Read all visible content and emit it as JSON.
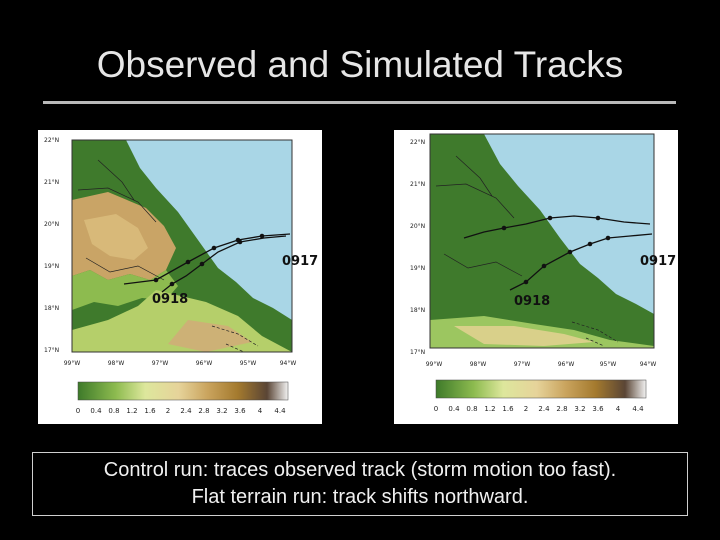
{
  "slide": {
    "title": "Observed and Simulated Tracks",
    "caption_line1": "Control run: traces observed track (storm motion too fast).",
    "caption_line2": "Flat terrain run: track shifts northward."
  },
  "maps": [
    {
      "name": "control-run",
      "lat_labels": [
        "22°N",
        "21°N",
        "20°N",
        "19°N",
        "18°N",
        "17°N"
      ],
      "lon_labels": [
        "99°W",
        "98°W",
        "97°W",
        "96°W",
        "95°W",
        "94°W"
      ],
      "track_labels": [
        "0917",
        "0918"
      ],
      "colorbar_labels": [
        "0",
        "0.4",
        "0.8",
        "1.2",
        "1.6",
        "2",
        "2.4",
        "2.8",
        "3.2",
        "3.6",
        "4",
        "4.4"
      ]
    },
    {
      "name": "flat-terrain-run",
      "lat_labels": [
        "22°N",
        "21°N",
        "20°N",
        "19°N",
        "18°N",
        "17°N"
      ],
      "lon_labels": [
        "99°W",
        "98°W",
        "97°W",
        "96°W",
        "95°W",
        "94°W"
      ],
      "track_labels": [
        "0917",
        "0918"
      ],
      "colorbar_labels": [
        "0",
        "0.4",
        "0.8",
        "1.2",
        "1.6",
        "2",
        "2.4",
        "2.8",
        "3.2",
        "3.6",
        "4",
        "4.4"
      ]
    }
  ],
  "colors": {
    "sea": "#a9d6e6",
    "lowland": "#3f7a2c",
    "highland": "#c9a466",
    "track": "#111111"
  }
}
